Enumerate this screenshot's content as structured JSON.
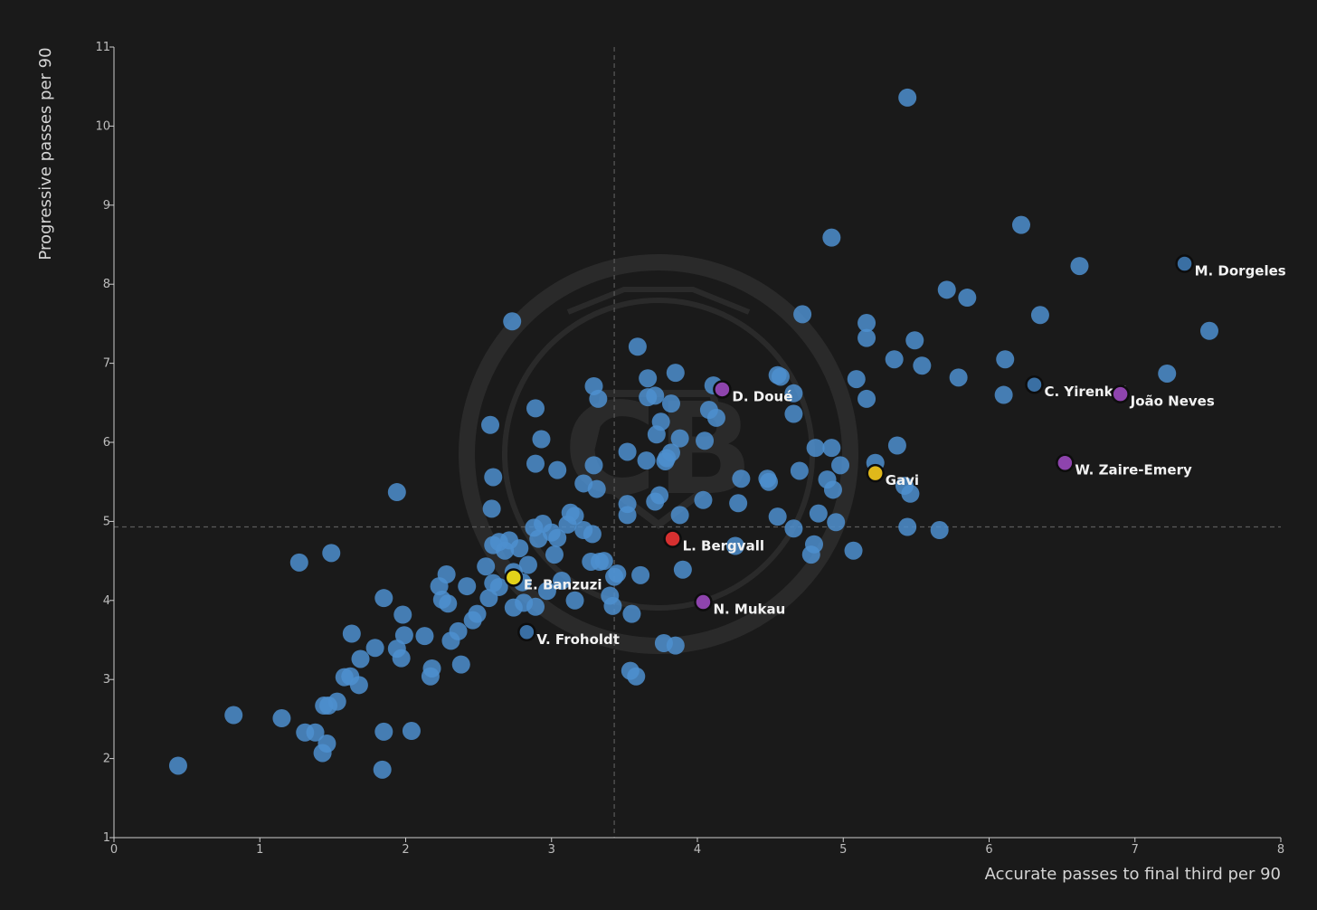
{
  "chart_data": {
    "type": "scatter",
    "title": "",
    "xlabel": "Accurate passes to final third per 90",
    "ylabel": "Progressive passes per 90",
    "xlim": [
      0,
      8
    ],
    "ylim": [
      1,
      11
    ],
    "xticks": [
      0,
      1,
      2,
      3,
      4,
      5,
      6,
      7,
      8
    ],
    "yticks": [
      1,
      2,
      3,
      4,
      5,
      6,
      7,
      8,
      9,
      10,
      11
    ],
    "reference_lines": {
      "x": 3.43,
      "y": 4.93
    },
    "colors": {
      "background": "#1a1a1a",
      "point": "#4d8fcf",
      "highlight_blue": "#3a6fa3",
      "purple": "#8e44ad",
      "yellow": "#e3d21a",
      "gold": "#e0b81a",
      "red": "#d63030",
      "axis": "#cccccc",
      "ref_line": "#5a5a5a",
      "label": "#f2f2f2"
    },
    "highlighted": [
      {
        "name": "M. Dorgeles",
        "x": 7.34,
        "y": 8.26,
        "color": "#3a6fa3"
      },
      {
        "name": "C. Yirenkyi",
        "x": 6.31,
        "y": 6.73,
        "color": "#3a6fa3"
      },
      {
        "name": "João Neves",
        "x": 6.9,
        "y": 6.61,
        "color": "#8e44ad"
      },
      {
        "name": "W. Zaire-Emery",
        "x": 6.52,
        "y": 5.74,
        "color": "#8e44ad"
      },
      {
        "name": "D. Doué",
        "x": 4.17,
        "y": 6.67,
        "color": "#8e44ad"
      },
      {
        "name": "Gavi",
        "x": 5.22,
        "y": 5.61,
        "color": "#e0b81a"
      },
      {
        "name": "L. Bergvall",
        "x": 3.83,
        "y": 4.78,
        "color": "#d63030"
      },
      {
        "name": "E. Banzuzi",
        "x": 2.74,
        "y": 4.29,
        "color": "#e3d21a"
      },
      {
        "name": "N. Mukau",
        "x": 4.04,
        "y": 3.98,
        "color": "#8e44ad"
      },
      {
        "name": "V. Froholdt",
        "x": 2.83,
        "y": 3.6,
        "color": "#3a6fa3"
      }
    ],
    "points": [
      [
        0.44,
        1.91
      ],
      [
        0.82,
        2.55
      ],
      [
        1.15,
        2.51
      ],
      [
        1.31,
        2.33
      ],
      [
        1.38,
        2.33
      ],
      [
        1.43,
        2.07
      ],
      [
        1.46,
        2.19
      ],
      [
        1.44,
        2.67
      ],
      [
        1.47,
        2.67
      ],
      [
        1.53,
        2.72
      ],
      [
        1.58,
        3.03
      ],
      [
        1.62,
        3.04
      ],
      [
        1.68,
        2.93
      ],
      [
        1.69,
        3.26
      ],
      [
        1.63,
        3.58
      ],
      [
        1.79,
        3.4
      ],
      [
        1.85,
        2.34
      ],
      [
        1.84,
        1.86
      ],
      [
        1.85,
        4.03
      ],
      [
        1.94,
        3.39
      ],
      [
        1.97,
        3.27
      ],
      [
        1.99,
        3.56
      ],
      [
        1.98,
        3.82
      ],
      [
        2.04,
        2.35
      ],
      [
        2.13,
        3.55
      ],
      [
        2.17,
        3.04
      ],
      [
        2.18,
        3.14
      ],
      [
        2.23,
        4.18
      ],
      [
        2.25,
        4.01
      ],
      [
        2.28,
        4.33
      ],
      [
        2.29,
        3.96
      ],
      [
        2.31,
        3.49
      ],
      [
        2.36,
        3.61
      ],
      [
        2.38,
        3.19
      ],
      [
        2.42,
        4.18
      ],
      [
        2.46,
        3.75
      ],
      [
        2.49,
        3.83
      ],
      [
        2.55,
        4.43
      ],
      [
        2.57,
        4.03
      ],
      [
        2.6,
        4.22
      ],
      [
        2.6,
        4.7
      ],
      [
        2.64,
        4.74
      ],
      [
        2.64,
        4.17
      ],
      [
        2.68,
        4.63
      ],
      [
        2.71,
        4.76
      ],
      [
        2.74,
        4.36
      ],
      [
        2.74,
        3.91
      ],
      [
        2.78,
        4.66
      ],
      [
        2.8,
        4.23
      ],
      [
        2.81,
        3.97
      ],
      [
        2.84,
        4.45
      ],
      [
        2.88,
        4.92
      ],
      [
        2.89,
        3.92
      ],
      [
        2.91,
        4.78
      ],
      [
        2.94,
        4.97
      ],
      [
        2.97,
        4.12
      ],
      [
        3.0,
        4.86
      ],
      [
        3.02,
        4.58
      ],
      [
        3.04,
        4.79
      ],
      [
        3.07,
        4.25
      ],
      [
        3.11,
        4.96
      ],
      [
        3.13,
        5.11
      ],
      [
        3.16,
        5.07
      ],
      [
        3.16,
        4.0
      ],
      [
        3.22,
        4.89
      ],
      [
        3.27,
        4.49
      ],
      [
        3.28,
        4.84
      ],
      [
        3.33,
        4.49
      ],
      [
        3.36,
        4.5
      ],
      [
        3.4,
        4.06
      ],
      [
        3.42,
        3.93
      ],
      [
        3.43,
        4.3
      ],
      [
        3.45,
        4.34
      ],
      [
        3.52,
        5.22
      ],
      [
        3.52,
        5.08
      ],
      [
        3.55,
        3.83
      ],
      [
        3.61,
        4.32
      ],
      [
        3.54,
        3.11
      ],
      [
        3.58,
        3.04
      ],
      [
        3.77,
        3.46
      ],
      [
        3.85,
        3.43
      ],
      [
        3.9,
        4.39
      ],
      [
        3.88,
        5.08
      ],
      [
        4.04,
        5.27
      ],
      [
        4.26,
        4.69
      ],
      [
        4.28,
        5.23
      ],
      [
        4.55,
        5.06
      ],
      [
        4.66,
        4.91
      ],
      [
        4.78,
        4.58
      ],
      [
        4.8,
        4.71
      ],
      [
        4.83,
        5.1
      ],
      [
        4.95,
        4.99
      ],
      [
        5.07,
        4.63
      ],
      [
        5.44,
        4.93
      ],
      [
        5.66,
        4.89
      ],
      [
        5.46,
        5.35
      ],
      [
        5.42,
        5.45
      ],
      [
        5.22,
        5.74
      ],
      [
        5.37,
        5.96
      ],
      [
        4.93,
        5.4
      ],
      [
        4.98,
        5.71
      ],
      [
        4.89,
        5.53
      ],
      [
        4.92,
        5.93
      ],
      [
        4.81,
        5.93
      ],
      [
        4.7,
        5.64
      ],
      [
        4.49,
        5.5
      ],
      [
        4.48,
        5.54
      ],
      [
        4.3,
        5.54
      ],
      [
        4.05,
        6.02
      ],
      [
        4.08,
        6.41
      ],
      [
        4.13,
        6.31
      ],
      [
        4.11,
        6.72
      ],
      [
        3.82,
        5.87
      ],
      [
        3.78,
        5.76
      ],
      [
        3.79,
        5.8
      ],
      [
        3.74,
        5.33
      ],
      [
        3.71,
        5.25
      ],
      [
        3.65,
        5.77
      ],
      [
        3.88,
        6.05
      ],
      [
        3.75,
        6.26
      ],
      [
        3.72,
        6.1
      ],
      [
        3.82,
        6.49
      ],
      [
        3.66,
        6.57
      ],
      [
        3.71,
        6.59
      ],
      [
        3.66,
        6.81
      ],
      [
        3.85,
        6.88
      ],
      [
        3.59,
        7.21
      ],
      [
        3.52,
        5.88
      ],
      [
        3.29,
        5.71
      ],
      [
        3.31,
        5.41
      ],
      [
        3.22,
        5.48
      ],
      [
        3.04,
        5.65
      ],
      [
        2.89,
        5.73
      ],
      [
        2.93,
        6.04
      ],
      [
        2.89,
        6.43
      ],
      [
        3.29,
        6.71
      ],
      [
        3.32,
        6.55
      ],
      [
        2.58,
        6.22
      ],
      [
        2.6,
        5.56
      ],
      [
        2.59,
        5.16
      ],
      [
        2.73,
        7.53
      ],
      [
        1.94,
        5.37
      ],
      [
        1.49,
        4.6
      ],
      [
        1.27,
        4.48
      ],
      [
        4.57,
        6.83
      ],
      [
        4.55,
        6.85
      ],
      [
        4.66,
        6.62
      ],
      [
        4.66,
        6.36
      ],
      [
        4.72,
        7.62
      ],
      [
        4.92,
        8.59
      ],
      [
        5.09,
        6.8
      ],
      [
        5.16,
        6.55
      ],
      [
        5.16,
        7.32
      ],
      [
        5.16,
        7.51
      ],
      [
        5.35,
        7.05
      ],
      [
        5.49,
        7.29
      ],
      [
        5.54,
        6.97
      ],
      [
        5.44,
        10.36
      ],
      [
        5.71,
        7.93
      ],
      [
        5.79,
        6.82
      ],
      [
        5.85,
        7.83
      ],
      [
        6.1,
        6.6
      ],
      [
        6.11,
        7.05
      ],
      [
        6.22,
        8.75
      ],
      [
        6.35,
        7.61
      ],
      [
        6.62,
        8.23
      ],
      [
        7.22,
        6.87
      ],
      [
        7.51,
        7.41
      ]
    ]
  }
}
